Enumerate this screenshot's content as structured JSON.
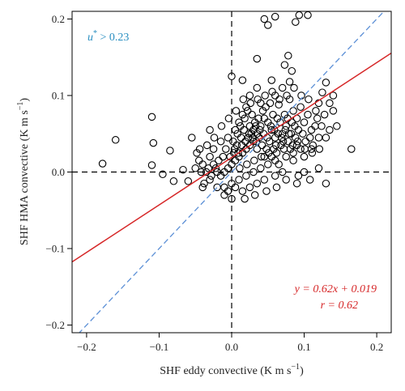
{
  "chart_data": {
    "type": "scatter",
    "title": "",
    "xlabel_main": "SHF eddy convective (K m s",
    "xlabel_sup": "−1",
    "xlabel_close": ")",
    "ylabel_main": "SHF HMA convective (K m s",
    "ylabel_sup": "−1",
    "ylabel_close": ")",
    "xlim": [
      -0.22,
      0.22
    ],
    "ylim": [
      -0.21,
      0.21
    ],
    "x_ticks": [
      -0.2,
      -0.1,
      0.0,
      0.1,
      0.2
    ],
    "x_tick_labels": [
      "−0.2",
      "−0.1",
      "0.0",
      "0.1",
      "0.2"
    ],
    "y_ticks": [
      -0.2,
      -0.1,
      0.0,
      0.1,
      0.2
    ],
    "y_tick_labels": [
      "−0.2",
      "−0.1",
      "0.0",
      "0.1",
      "0.2"
    ],
    "grid": false,
    "zero_lines": true,
    "annotation_ustar_sym": "u",
    "annotation_ustar_sup": "*",
    "annotation_ustar_rest": " > 0.23",
    "annotation_fit": "y = 0.62x + 0.019",
    "annotation_r": "r = 0.62",
    "fit": {
      "slope": 0.62,
      "intercept": 0.019
    },
    "one_to_one": true,
    "colors": {
      "points": "#000000",
      "fit_line": "#d62728",
      "one_to_one": "#5b8fd6",
      "ustar_text": "#2a8fc1",
      "fit_text": "#d62728",
      "zero_lines": "#000000"
    },
    "series": [
      {
        "points": [
          [
            0.105,
            0.205
          ],
          [
            0.093,
            0.205
          ],
          [
            0.06,
            0.203
          ],
          [
            0.045,
            0.2
          ],
          [
            0.05,
            0.192
          ],
          [
            0.088,
            0.196
          ],
          [
            0.078,
            0.152
          ],
          [
            0.035,
            0.148
          ],
          [
            0.073,
            0.14
          ],
          [
            0.083,
            0.132
          ],
          [
            0.08,
            0.118
          ],
          [
            0.0,
            0.125
          ],
          [
            -0.16,
            0.042
          ],
          [
            -0.178,
            0.011
          ],
          [
            -0.11,
            0.072
          ],
          [
            -0.108,
            0.038
          ],
          [
            -0.11,
            0.009
          ],
          [
            -0.085,
            0.028
          ],
          [
            -0.095,
            -0.003
          ],
          [
            -0.08,
            -0.012
          ],
          [
            -0.067,
            0.003
          ],
          [
            -0.055,
            0.045
          ],
          [
            -0.048,
            0.025
          ],
          [
            -0.06,
            -0.012
          ],
          [
            0.165,
            0.03
          ],
          [
            0.13,
            0.045
          ],
          [
            0.145,
            0.06
          ],
          [
            0.135,
            0.055
          ],
          [
            0.13,
            0.117
          ],
          [
            0.125,
            0.104
          ],
          [
            0.13,
            -0.015
          ],
          [
            0.1,
            0.0
          ],
          [
            0.092,
            -0.005
          ],
          [
            0.11,
            0.03
          ],
          [
            0.14,
            0.08
          ],
          [
            0.12,
            0.09
          ],
          [
            -0.03,
            0.055
          ],
          [
            -0.025,
            0.01
          ],
          [
            -0.02,
            -0.02
          ],
          [
            -0.01,
            -0.03
          ],
          [
            0.0,
            -0.035
          ],
          [
            -0.04,
            -0.02
          ],
          [
            0.015,
            0.12
          ],
          [
            0.025,
            0.1
          ],
          [
            0.035,
            0.11
          ],
          [
            0.04,
            0.09
          ],
          [
            0.055,
            0.12
          ],
          [
            0.06,
            0.1
          ],
          [
            0.07,
            0.11
          ],
          [
            0.065,
            0.088
          ],
          [
            0.08,
            0.095
          ],
          [
            0.085,
            0.08
          ],
          [
            0.09,
            0.07
          ],
          [
            0.095,
            0.085
          ],
          [
            0.1,
            0.065
          ],
          [
            0.105,
            0.075
          ],
          [
            0.11,
            0.055
          ],
          [
            0.115,
            0.06
          ],
          [
            0.118,
            0.07
          ],
          [
            0.12,
            0.045
          ],
          [
            0.075,
            0.06
          ],
          [
            0.07,
            0.05
          ],
          [
            0.06,
            0.045
          ],
          [
            0.055,
            0.055
          ],
          [
            0.05,
            0.065
          ],
          [
            0.045,
            0.07
          ],
          [
            0.04,
            0.06
          ],
          [
            0.035,
            0.05
          ],
          [
            0.03,
            0.04
          ],
          [
            0.025,
            0.035
          ],
          [
            0.02,
            0.03
          ],
          [
            0.015,
            0.025
          ],
          [
            0.01,
            0.02
          ],
          [
            0.005,
            0.015
          ],
          [
            0.0,
            0.01
          ],
          [
            -0.005,
            0.005
          ],
          [
            -0.01,
            0.0
          ],
          [
            -0.015,
            -0.005
          ],
          [
            -0.02,
            0.0
          ],
          [
            -0.012,
            0.02
          ],
          [
            -0.008,
            0.03
          ],
          [
            0.002,
            0.04
          ],
          [
            0.008,
            0.05
          ],
          [
            0.012,
            0.06
          ],
          [
            0.018,
            0.07
          ],
          [
            0.022,
            0.08
          ],
          [
            0.028,
            0.075
          ],
          [
            0.032,
            0.065
          ],
          [
            0.038,
            0.045
          ],
          [
            0.042,
            0.035
          ],
          [
            0.048,
            0.03
          ],
          [
            0.052,
            0.04
          ],
          [
            0.058,
            0.03
          ],
          [
            0.062,
            0.025
          ],
          [
            0.068,
            0.035
          ],
          [
            0.072,
            0.03
          ],
          [
            0.078,
            0.04
          ],
          [
            0.082,
            0.05
          ],
          [
            0.088,
            0.045
          ],
          [
            0.092,
            0.055
          ],
          [
            0.098,
            0.05
          ],
          [
            0.102,
            0.04
          ],
          [
            0.108,
            0.045
          ],
          [
            0.112,
            0.035
          ],
          [
            0.06,
            0.015
          ],
          [
            0.05,
            0.01
          ],
          [
            0.04,
            0.005
          ],
          [
            0.03,
            0.0
          ],
          [
            0.02,
            -0.005
          ],
          [
            0.01,
            -0.01
          ],
          [
            0.0,
            -0.015
          ],
          [
            -0.01,
            -0.02
          ],
          [
            -0.03,
            -0.01
          ],
          [
            -0.035,
            0.0
          ],
          [
            -0.04,
            0.01
          ],
          [
            -0.045,
            0.015
          ],
          [
            -0.03,
            0.02
          ],
          [
            -0.025,
            0.03
          ],
          [
            -0.015,
            0.04
          ],
          [
            -0.005,
            0.045
          ],
          [
            0.005,
            0.055
          ],
          [
            0.01,
            0.065
          ],
          [
            0.015,
            0.075
          ],
          [
            0.02,
            0.085
          ],
          [
            0.025,
            0.06
          ],
          [
            0.03,
            0.055
          ],
          [
            0.035,
            0.03
          ],
          [
            0.045,
            0.02
          ],
          [
            0.055,
            0.02
          ],
          [
            0.065,
            0.01
          ],
          [
            0.075,
            0.02
          ],
          [
            0.085,
            0.025
          ],
          [
            0.09,
            0.035
          ],
          [
            0.095,
            0.03
          ],
          [
            0.1,
            0.02
          ],
          [
            0.085,
            0.015
          ],
          [
            0.07,
            0.0
          ],
          [
            0.06,
            -0.005
          ],
          [
            0.045,
            -0.01
          ],
          [
            0.035,
            -0.015
          ],
          [
            0.025,
            -0.02
          ],
          [
            0.015,
            -0.025
          ],
          [
            0.005,
            -0.02
          ],
          [
            -0.005,
            -0.025
          ],
          [
            0.003,
            0.025
          ],
          [
            0.007,
            0.035
          ],
          [
            0.013,
            0.045
          ],
          [
            0.017,
            0.055
          ],
          [
            0.023,
            0.045
          ],
          [
            0.027,
            0.05
          ],
          [
            0.033,
            0.06
          ],
          [
            0.037,
            0.07
          ],
          [
            0.043,
            0.08
          ],
          [
            0.047,
            0.085
          ],
          [
            0.053,
            0.09
          ],
          [
            0.057,
            0.075
          ],
          [
            0.063,
            0.07
          ],
          [
            0.067,
            0.065
          ],
          [
            0.073,
            0.075
          ],
          [
            0.077,
            0.07
          ],
          [
            0.083,
            0.065
          ],
          [
            0.087,
            0.06
          ],
          [
            -0.002,
            0.02
          ],
          [
            0.004,
            0.03
          ],
          [
            0.009,
            0.025
          ],
          [
            0.014,
            0.035
          ],
          [
            0.019,
            0.04
          ],
          [
            0.024,
            0.05
          ],
          [
            0.029,
            0.045
          ],
          [
            0.034,
            0.04
          ],
          [
            0.039,
            0.055
          ],
          [
            0.044,
            0.05
          ],
          [
            0.049,
            0.045
          ],
          [
            0.054,
            0.06
          ],
          [
            0.059,
            0.055
          ],
          [
            0.064,
            0.05
          ],
          [
            0.069,
            0.045
          ],
          [
            0.074,
            0.055
          ],
          [
            0.079,
            0.05
          ],
          [
            0.084,
            0.035
          ],
          [
            -0.018,
            0.015
          ],
          [
            -0.022,
            0.005
          ],
          [
            -0.028,
            -0.005
          ],
          [
            -0.032,
            0.005
          ],
          [
            -0.038,
            -0.015
          ],
          [
            -0.042,
            0.0
          ],
          [
            0.011,
            0.005
          ],
          [
            0.021,
            0.01
          ],
          [
            0.031,
            0.015
          ],
          [
            0.041,
            0.02
          ],
          [
            0.051,
            0.025
          ],
          [
            0.061,
            0.035
          ],
          [
            0.071,
            0.04
          ],
          [
            0.081,
            0.03
          ],
          [
            0.091,
            0.04
          ],
          [
            0.101,
            0.03
          ],
          [
            0.111,
            0.025
          ],
          [
            0.121,
            0.03
          ],
          [
            0.116,
            0.08
          ],
          [
            0.106,
            0.095
          ],
          [
            0.096,
            0.1
          ],
          [
            0.086,
            0.11
          ],
          [
            0.076,
            0.1
          ],
          [
            0.066,
            0.095
          ],
          [
            0.056,
            0.105
          ],
          [
            0.046,
            0.1
          ],
          [
            0.036,
            0.095
          ],
          [
            0.026,
            0.09
          ],
          [
            0.016,
            0.095
          ],
          [
            0.006,
            0.08
          ],
          [
            -0.004,
            0.07
          ],
          [
            -0.014,
            0.06
          ],
          [
            -0.024,
            0.045
          ],
          [
            -0.034,
            0.035
          ],
          [
            -0.044,
            0.03
          ],
          [
            -0.05,
            0.005
          ],
          [
            0.128,
            0.075
          ],
          [
            0.135,
            0.09
          ],
          [
            0.14,
            0.1
          ],
          [
            0.124,
            0.06
          ],
          [
            0.12,
            0.005
          ],
          [
            0.108,
            -0.01
          ],
          [
            0.09,
            -0.015
          ],
          [
            0.075,
            -0.01
          ],
          [
            0.062,
            -0.02
          ],
          [
            0.048,
            -0.025
          ],
          [
            0.032,
            -0.03
          ],
          [
            0.018,
            -0.035
          ]
        ]
      }
    ]
  }
}
